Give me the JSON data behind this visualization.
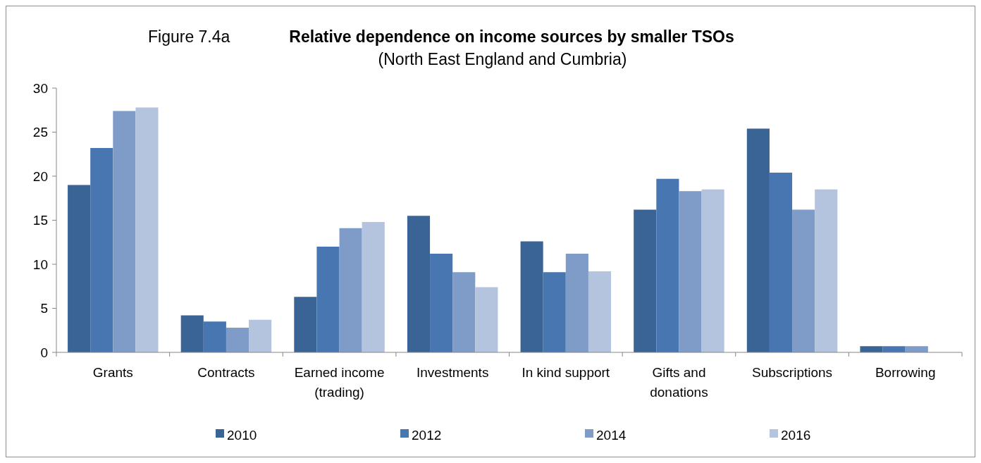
{
  "chart_data": {
    "type": "bar",
    "title": "Relative dependence on income sources by smaller TSOs",
    "subtitle": "(North East England and Cumbria)",
    "annotations": [
      "Figure 7.4a"
    ],
    "categories": [
      "Grants",
      "Contracts",
      "Earned income (trading)",
      "Investments",
      "In kind support",
      "Gifts and donations",
      "Subscriptions",
      "Borrowing"
    ],
    "series": [
      {
        "name": "2010",
        "color": "#3b6496",
        "values": [
          19.0,
          4.2,
          6.3,
          15.5,
          12.6,
          16.2,
          25.4,
          0.7
        ]
      },
      {
        "name": "2012",
        "color": "#4876b0",
        "values": [
          23.2,
          3.5,
          12.0,
          11.2,
          9.1,
          19.7,
          20.4,
          0.7
        ]
      },
      {
        "name": "2014",
        "color": "#7f9cc8",
        "values": [
          27.4,
          2.8,
          14.1,
          9.1,
          11.2,
          18.3,
          16.2,
          0.7
        ]
      },
      {
        "name": "2016",
        "color": "#b5c4de",
        "values": [
          27.8,
          3.7,
          14.8,
          7.4,
          9.2,
          18.5,
          18.5,
          null
        ]
      }
    ],
    "ylim": [
      0,
      30
    ],
    "yticks": [
      0,
      5,
      10,
      15,
      20,
      25,
      30
    ],
    "grid": false,
    "legend": "bottom"
  }
}
